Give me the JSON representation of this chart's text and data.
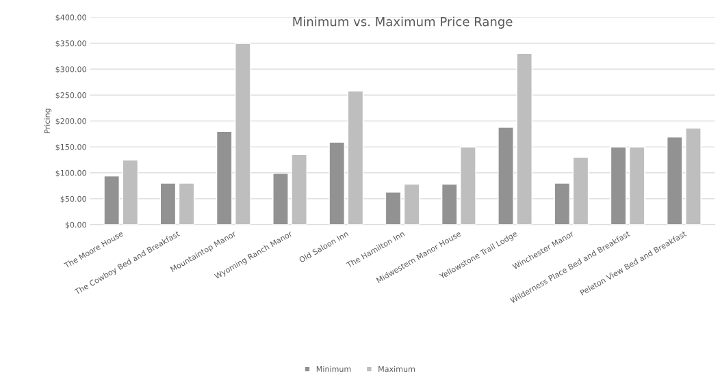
{
  "chart_data": {
    "type": "bar",
    "title": "Minimum vs. Maximum Price Range",
    "ylabel": "Pricing",
    "categories": [
      "The Moore House",
      "The Cowboy Bed and Breakfast",
      "Mountaintop Manor",
      "Wyoming Ranch Manor",
      "Old Saloon Inn",
      "The Hamilton Inn",
      "Midwestern Manor House",
      "Yellowstone Trail Lodge",
      "Winchester Manor",
      "Wilderness Place Bed and Breakfast",
      "Peleton View Bed and Breakfast"
    ],
    "series": [
      {
        "name": "Minimum",
        "color": "#929292",
        "values": [
          94,
          80,
          180,
          99,
          159,
          63,
          78,
          188,
          80,
          150,
          169
        ]
      },
      {
        "name": "Maximum",
        "color": "#bebebe",
        "values": [
          125,
          80,
          350,
          135,
          258,
          78,
          150,
          330,
          130,
          150,
          186
        ]
      }
    ],
    "ylim": [
      0,
      400
    ],
    "yticks": [
      {
        "value": 0,
        "label": "$0.00"
      },
      {
        "value": 50,
        "label": "$50.00"
      },
      {
        "value": 100,
        "label": "$100.00"
      },
      {
        "value": 150,
        "label": "$150.00"
      },
      {
        "value": 200,
        "label": "$200.00"
      },
      {
        "value": 250,
        "label": "$250.00"
      },
      {
        "value": 300,
        "label": "$300.00"
      },
      {
        "value": 350,
        "label": "$350.00"
      },
      {
        "value": 400,
        "label": "$400.00"
      }
    ],
    "grid": "y",
    "legend": "bottom"
  }
}
